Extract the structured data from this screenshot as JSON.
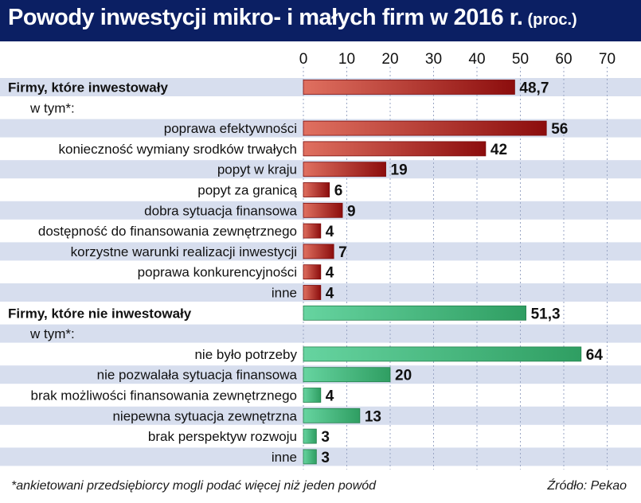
{
  "title": "Powody inwestycji mikro- i małych firm w 2016 r.",
  "unit": "(proc.)",
  "footnote": "*ankietowani przedsiębiorcy mogli podać więcej niż jeden powód",
  "source": "Źródło: Pekao",
  "colors": {
    "title_bg": "#0b1f63",
    "band": "#d7deee",
    "red_light": "#e07060",
    "red_dark": "#8c0d0d",
    "green_light": "#66d4a0",
    "green_dark": "#2f9e62"
  },
  "chart_data": {
    "type": "bar",
    "orientation": "horizontal",
    "title": "Powody inwestycji mikro- i małych firm w 2016 r.",
    "xlim": [
      0,
      70
    ],
    "xticks": [
      0,
      10,
      20,
      30,
      40,
      50,
      60,
      70
    ],
    "series": [
      {
        "name": "Firmy, które inwestowały",
        "color": "red",
        "total": {
          "label": "Firmy, które inwestowały",
          "value": 48.7,
          "value_label": "48,7"
        },
        "subheader": "w tym*:",
        "items": [
          {
            "label": "poprawa efektywności",
            "value": 56,
            "value_label": "56"
          },
          {
            "label": "konieczność wymiany srodków trwałych",
            "value": 42,
            "value_label": "42"
          },
          {
            "label": "popyt w kraju",
            "value": 19,
            "value_label": "19"
          },
          {
            "label": "popyt za granicą",
            "value": 6,
            "value_label": "6"
          },
          {
            "label": "dobra sytuacja finansowa",
            "value": 9,
            "value_label": "9"
          },
          {
            "label": "dostępność do finansowania zewnętrznego",
            "value": 4,
            "value_label": "4"
          },
          {
            "label": "korzystne warunki realizacji inwestycji",
            "value": 7,
            "value_label": "7"
          },
          {
            "label": "poprawa konkurencyjności",
            "value": 4,
            "value_label": "4"
          },
          {
            "label": "inne",
            "value": 4,
            "value_label": "4"
          }
        ]
      },
      {
        "name": "Firmy, które nie inwestowały",
        "color": "green",
        "total": {
          "label": "Firmy, które nie inwestowały",
          "value": 51.3,
          "value_label": "51,3"
        },
        "subheader": "w tym*:",
        "items": [
          {
            "label": "nie było potrzeby",
            "value": 64,
            "value_label": "64"
          },
          {
            "label": "nie pozwalała sytuacja finansowa",
            "value": 20,
            "value_label": "20"
          },
          {
            "label": "brak możliwości finansowania zewnętrznego",
            "value": 4,
            "value_label": "4"
          },
          {
            "label": "niepewna sytuacja zewnętrzna",
            "value": 13,
            "value_label": "13"
          },
          {
            "label": "brak perspektyw rozwoju",
            "value": 3,
            "value_label": "3"
          },
          {
            "label": "inne",
            "value": 3,
            "value_label": "3"
          }
        ]
      }
    ]
  }
}
